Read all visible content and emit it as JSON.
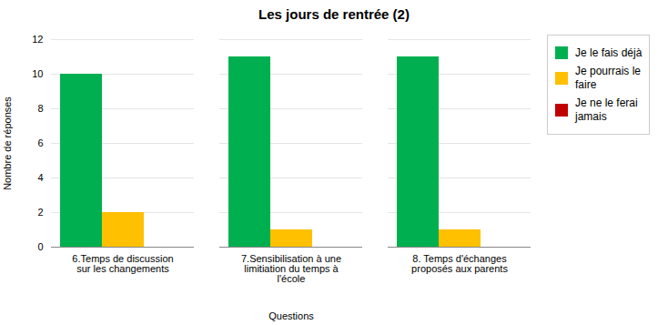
{
  "chart_data": {
    "type": "bar",
    "title": "Les jours de rentrée (2)",
    "xlabel": "Questions",
    "ylabel": "Nombre de réponses",
    "categories": [
      "6.Temps de discussion\nsur les changements",
      "7.Sensibilisation à une\nlimitiation du temps à\nl'école",
      "8. Temps d'échanges\nproposés aux parents"
    ],
    "series": [
      {
        "name": "Je le fais déjà",
        "color": "#00b050",
        "values": [
          10,
          11,
          11
        ]
      },
      {
        "name": "Je pourrais le\nfaire",
        "color": "#ffc000",
        "values": [
          2,
          1,
          1
        ]
      },
      {
        "name": "Je ne le ferai\njamais",
        "color": "#c00000",
        "values": [
          0,
          0,
          0
        ]
      }
    ],
    "ylim": [
      0,
      12
    ],
    "yticks": [
      0,
      2,
      4,
      6,
      8,
      10,
      12
    ],
    "grid": true,
    "legend": "right"
  }
}
